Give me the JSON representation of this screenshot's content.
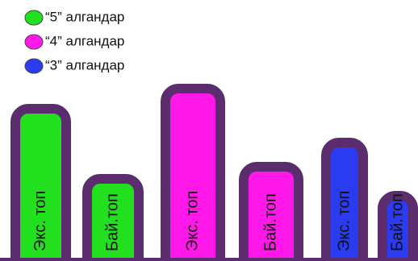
{
  "chart_data": {
    "type": "bar",
    "categories": [
      "Экс. топ",
      "Бай.топ"
    ],
    "series": [
      {
        "name": "“5” алгандар",
        "color": "#22e01e",
        "values": [
          195,
          108
        ]
      },
      {
        "name": "“4” алгандар",
        "color": "#ff18e8",
        "values": [
          220,
          123
        ]
      },
      {
        "name": "“3” алгандар",
        "color": "#2b3cf0",
        "values": [
          153,
          87
        ]
      }
    ],
    "border_color": "#5b2d6e"
  }
}
